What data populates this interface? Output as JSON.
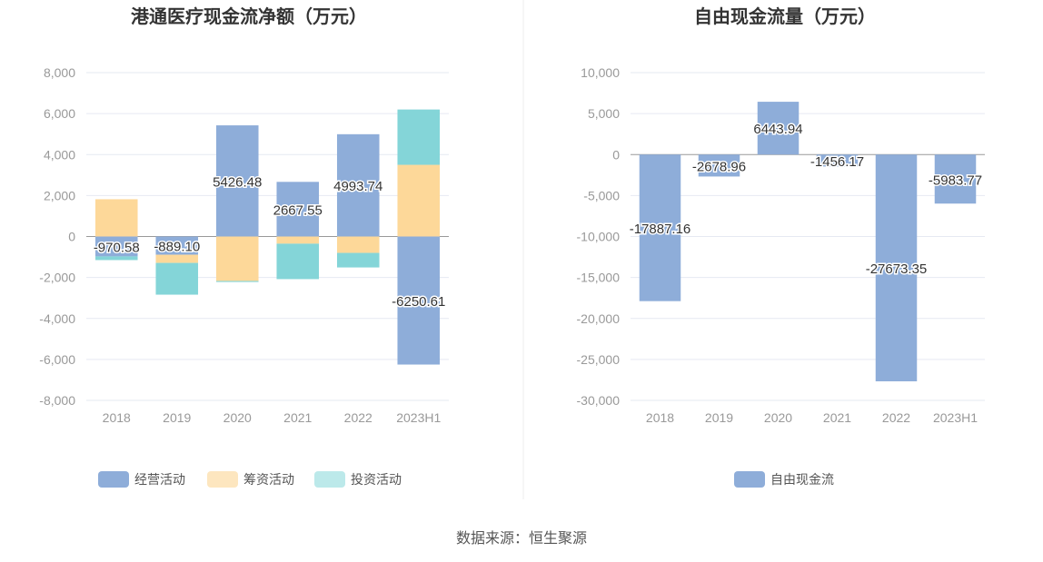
{
  "chart_data": [
    {
      "type": "bar",
      "stacked": true,
      "title": "港通医疗现金流净额（万元）",
      "categories": [
        "2018",
        "2019",
        "2020",
        "2021",
        "2022",
        "2023H1"
      ],
      "ylim": [
        -8000,
        8000
      ],
      "yticks": [
        8000,
        6000,
        4000,
        2000,
        0,
        -2000,
        -4000,
        -6000,
        -8000
      ],
      "ytick_labels": [
        "8,000",
        "6,000",
        "4,000",
        "2,000",
        "0",
        "-2,000",
        "-4,000",
        "-6,000",
        "-8,000"
      ],
      "series": [
        {
          "name": "经营活动",
          "color": "#8eadd9",
          "values": [
            -970.58,
            -889.1,
            5426.48,
            2667.55,
            4993.74,
            -6250.61
          ],
          "labels": [
            "-970.58",
            "-889.10",
            "5426.48",
            "2667.55",
            "4993.74",
            "-6250.61"
          ]
        },
        {
          "name": "筹资活动",
          "color": "#fdd899",
          "legend_color": "#fde6bf",
          "values": [
            1820,
            -400,
            -2170,
            -350,
            -800,
            3500
          ]
        },
        {
          "name": "投资活动",
          "color": "#84d5d8",
          "legend_color": "#bce9ea",
          "values": [
            -180,
            -1550,
            -50,
            -1730,
            -710,
            2700
          ]
        }
      ],
      "legend": "bottom"
    },
    {
      "type": "bar",
      "title": "自由现金流量（万元）",
      "categories": [
        "2018",
        "2019",
        "2020",
        "2021",
        "2022",
        "2023H1"
      ],
      "ylim": [
        -30000,
        10000
      ],
      "yticks": [
        10000,
        5000,
        0,
        -5000,
        -10000,
        -15000,
        -20000,
        -25000,
        -30000
      ],
      "ytick_labels": [
        "10,000",
        "5,000",
        "0",
        "-5,000",
        "-10,000",
        "-15,000",
        "-20,000",
        "-25,000",
        "-30,000"
      ],
      "series": [
        {
          "name": "自由现金流",
          "color": "#8eadd9",
          "values": [
            -17887.16,
            -2678.96,
            6443.94,
            -1456.17,
            -27673.35,
            -5983.77
          ],
          "labels": [
            "-17887.16",
            "-2678.96",
            "6443.94",
            "-1456.17",
            "-27673.35",
            "-5983.77"
          ]
        }
      ],
      "legend": "bottom"
    }
  ],
  "source": "数据来源：恒生聚源"
}
